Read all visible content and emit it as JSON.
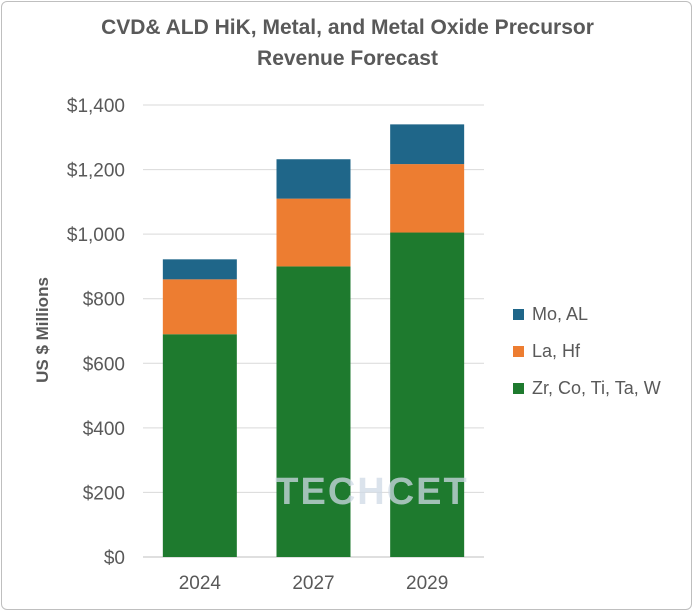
{
  "chart_data": {
    "type": "bar",
    "stacked": true,
    "title_line1": "CVD& ALD HiK, Metal, and Metal Oxide Precursor",
    "title_line2": "Revenue Forecast",
    "ylabel": "US $ Millions",
    "xlabel": "",
    "categories": [
      "2024",
      "2027",
      "2029"
    ],
    "ylim": [
      0,
      1400
    ],
    "yticks": [
      0,
      200,
      400,
      600,
      800,
      1000,
      1200,
      1400
    ],
    "ytick_labels": [
      "$0",
      "$200",
      "$400",
      "$600",
      "$800",
      "$1,000",
      "$1,200",
      "$1,400"
    ],
    "series": [
      {
        "name": "Zr, Co, Ti, Ta, W",
        "values": [
          690,
          900,
          1005
        ],
        "color": "#1e7a2e"
      },
      {
        "name": "La, Hf",
        "values": [
          170,
          210,
          212
        ],
        "color": "#ed7d31"
      },
      {
        "name": "Mo, AL",
        "values": [
          62,
          122,
          123
        ],
        "color": "#1f6689"
      }
    ],
    "legend_order": [
      "Mo, AL",
      "La, Hf",
      "Zr, Co, Ti, Ta, W"
    ],
    "legend_position": "right",
    "grid": true,
    "watermark": "TECHCET"
  },
  "colors": {
    "grid": "#d9d9d9",
    "axis": "#bfbfbf",
    "text": "#595959"
  }
}
